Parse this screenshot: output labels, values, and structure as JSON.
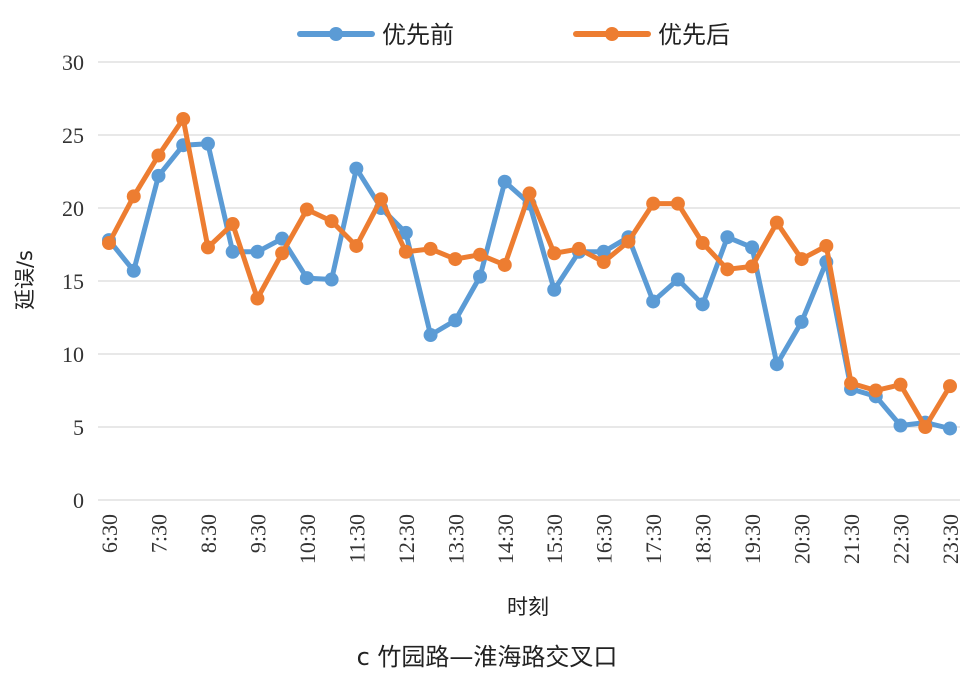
{
  "chart_data": {
    "type": "line",
    "title": "",
    "caption": "c 竹园路—淮海路交叉口",
    "xlabel": "时刻",
    "ylabel": "延误/s",
    "ylim": [
      0,
      30
    ],
    "yticks": [
      0,
      5,
      10,
      15,
      20,
      25,
      30
    ],
    "xtick_labels": [
      "6:30",
      "7:30",
      "8:30",
      "9:30",
      "10:30",
      "11:30",
      "12:30",
      "13:30",
      "14:30",
      "15:30",
      "16:30",
      "17:30",
      "18:30",
      "19:30",
      "20:30",
      "21:30",
      "22:30",
      "23:30"
    ],
    "legend_position": "top-center",
    "series": [
      {
        "name": "优先前",
        "color": "#5B9BD5",
        "values": [
          17.8,
          15.7,
          22.2,
          24.3,
          24.4,
          17.0,
          17.0,
          17.9,
          15.2,
          15.1,
          22.7,
          20.0,
          18.3,
          11.3,
          12.3,
          15.3,
          21.8,
          20.3,
          14.4,
          17.0,
          17.0,
          18.0,
          13.6,
          15.1,
          13.4,
          18.0,
          17.3,
          9.3,
          12.2,
          16.3,
          7.6,
          7.1,
          5.1,
          5.3,
          4.9
        ]
      },
      {
        "name": "优先后",
        "color": "#ED7D31",
        "values": [
          17.6,
          20.8,
          23.6,
          26.1,
          17.3,
          18.9,
          13.8,
          16.9,
          19.9,
          19.1,
          17.4,
          20.6,
          17.0,
          17.2,
          16.5,
          16.8,
          16.1,
          21.0,
          16.9,
          17.2,
          16.3,
          17.7,
          20.3,
          20.3,
          17.6,
          15.8,
          16.0,
          19.0,
          16.5,
          17.4,
          8.0,
          7.5,
          7.9,
          5.0,
          7.8
        ]
      }
    ]
  }
}
